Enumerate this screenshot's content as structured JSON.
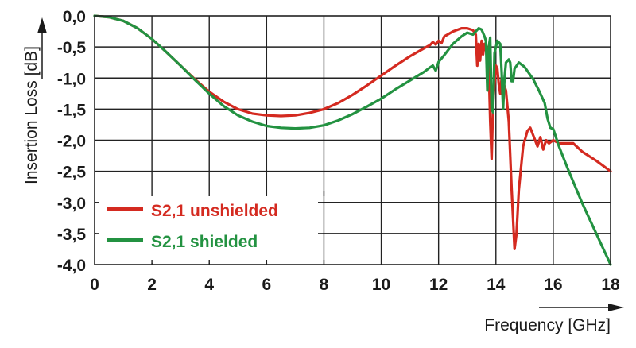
{
  "chart_data": {
    "type": "line",
    "title": "",
    "xlabel": "Frequency [GHz]",
    "ylabel": "Insertion Loss [dB]",
    "xlim": [
      0,
      18
    ],
    "ylim": [
      -4.0,
      0.0
    ],
    "grid": true,
    "legend_position": "lower-left (inside plot)",
    "x_ticks": [
      "0",
      "2",
      "4",
      "6",
      "8",
      "10",
      "12",
      "14",
      "16",
      "18"
    ],
    "y_ticks": [
      "0,0",
      "-0,5",
      "-1,0",
      "-1,5",
      "-2,0",
      "-2,5",
      "-3,0",
      "-3,5",
      "-4,0"
    ],
    "series": [
      {
        "name": "S2,1 unshielded",
        "color": "#d42a20",
        "points": [
          [
            0,
            0.0
          ],
          [
            0.5,
            -0.02
          ],
          [
            1,
            -0.08
          ],
          [
            1.5,
            -0.2
          ],
          [
            2,
            -0.37
          ],
          [
            2.5,
            -0.58
          ],
          [
            3,
            -0.8
          ],
          [
            3.5,
            -1.02
          ],
          [
            4,
            -1.22
          ],
          [
            4.5,
            -1.38
          ],
          [
            5,
            -1.5
          ],
          [
            5.5,
            -1.57
          ],
          [
            6,
            -1.6
          ],
          [
            6.5,
            -1.61
          ],
          [
            7,
            -1.6
          ],
          [
            7.5,
            -1.56
          ],
          [
            8,
            -1.5
          ],
          [
            8.5,
            -1.4
          ],
          [
            9,
            -1.27
          ],
          [
            9.5,
            -1.12
          ],
          [
            10,
            -0.96
          ],
          [
            10.5,
            -0.8
          ],
          [
            11,
            -0.65
          ],
          [
            11.5,
            -0.52
          ],
          [
            11.7,
            -0.47
          ],
          [
            11.8,
            -0.42
          ],
          [
            11.9,
            -0.46
          ],
          [
            12.0,
            -0.4
          ],
          [
            12.1,
            -0.44
          ],
          [
            12.2,
            -0.33
          ],
          [
            12.5,
            -0.25
          ],
          [
            12.8,
            -0.2
          ],
          [
            13.0,
            -0.2
          ],
          [
            13.2,
            -0.23
          ],
          [
            13.3,
            -0.3
          ],
          [
            13.35,
            -0.8
          ],
          [
            13.4,
            -0.45
          ],
          [
            13.45,
            -0.72
          ],
          [
            13.5,
            -0.4
          ],
          [
            13.55,
            -0.62
          ],
          [
            13.6,
            -0.45
          ],
          [
            13.65,
            -0.55
          ],
          [
            13.7,
            -0.5
          ],
          [
            13.75,
            -0.8
          ],
          [
            13.8,
            -1.7
          ],
          [
            13.85,
            -2.3
          ],
          [
            13.9,
            -1.4
          ],
          [
            14.0,
            -0.8
          ],
          [
            14.05,
            -0.85
          ],
          [
            14.1,
            -1.1
          ],
          [
            14.15,
            -1.25
          ],
          [
            14.2,
            -1.0
          ],
          [
            14.35,
            -1.2
          ],
          [
            14.45,
            -1.7
          ],
          [
            14.55,
            -2.8
          ],
          [
            14.65,
            -3.75
          ],
          [
            14.72,
            -3.5
          ],
          [
            14.8,
            -2.8
          ],
          [
            14.95,
            -2.1
          ],
          [
            15.1,
            -1.85
          ],
          [
            15.2,
            -1.8
          ],
          [
            15.35,
            -1.98
          ],
          [
            15.45,
            -2.1
          ],
          [
            15.55,
            -1.95
          ],
          [
            15.65,
            -2.15
          ],
          [
            15.75,
            -2.0
          ],
          [
            15.85,
            -2.05
          ],
          [
            16.0,
            -2.0
          ],
          [
            16.2,
            -2.05
          ],
          [
            16.5,
            -2.05
          ],
          [
            16.7,
            -2.05
          ],
          [
            17.0,
            -2.18
          ],
          [
            17.5,
            -2.33
          ],
          [
            18.0,
            -2.5
          ]
        ]
      },
      {
        "name": "S2,1 shielded",
        "color": "#239241",
        "points": [
          [
            0,
            0.0
          ],
          [
            0.5,
            -0.02
          ],
          [
            1,
            -0.08
          ],
          [
            1.5,
            -0.2
          ],
          [
            2,
            -0.37
          ],
          [
            2.5,
            -0.58
          ],
          [
            3,
            -0.8
          ],
          [
            3.5,
            -1.03
          ],
          [
            4,
            -1.25
          ],
          [
            4.5,
            -1.45
          ],
          [
            5,
            -1.6
          ],
          [
            5.5,
            -1.7
          ],
          [
            6,
            -1.77
          ],
          [
            6.5,
            -1.8
          ],
          [
            7,
            -1.81
          ],
          [
            7.5,
            -1.8
          ],
          [
            8,
            -1.76
          ],
          [
            8.5,
            -1.68
          ],
          [
            9,
            -1.58
          ],
          [
            9.5,
            -1.46
          ],
          [
            10,
            -1.33
          ],
          [
            10.5,
            -1.18
          ],
          [
            11,
            -1.04
          ],
          [
            11.5,
            -0.9
          ],
          [
            11.7,
            -0.83
          ],
          [
            11.8,
            -0.8
          ],
          [
            11.9,
            -0.88
          ],
          [
            12.0,
            -0.74
          ],
          [
            12.2,
            -0.63
          ],
          [
            12.5,
            -0.45
          ],
          [
            12.8,
            -0.33
          ],
          [
            13.0,
            -0.27
          ],
          [
            13.2,
            -0.3
          ],
          [
            13.4,
            -0.2
          ],
          [
            13.5,
            -0.22
          ],
          [
            13.6,
            -0.33
          ],
          [
            13.65,
            -0.4
          ],
          [
            13.7,
            -1.2
          ],
          [
            13.75,
            -0.5
          ],
          [
            13.8,
            -0.35
          ],
          [
            13.85,
            -1.5
          ],
          [
            13.9,
            -1.55
          ],
          [
            13.95,
            -0.6
          ],
          [
            14.05,
            -0.4
          ],
          [
            14.15,
            -0.45
          ],
          [
            14.2,
            -0.9
          ],
          [
            14.25,
            -1.5
          ],
          [
            14.3,
            -1.0
          ],
          [
            14.35,
            -0.75
          ],
          [
            14.45,
            -0.7
          ],
          [
            14.5,
            -0.75
          ],
          [
            14.55,
            -1.05
          ],
          [
            14.6,
            -1.05
          ],
          [
            14.65,
            -0.85
          ],
          [
            14.8,
            -0.75
          ],
          [
            15.0,
            -0.82
          ],
          [
            15.3,
            -1.02
          ],
          [
            15.5,
            -1.2
          ],
          [
            15.7,
            -1.4
          ],
          [
            15.8,
            -1.65
          ],
          [
            15.9,
            -1.8
          ],
          [
            16.0,
            -1.82
          ],
          [
            16.2,
            -2.1
          ],
          [
            16.5,
            -2.45
          ],
          [
            17.0,
            -3.0
          ],
          [
            17.5,
            -3.5
          ],
          [
            18.0,
            -4.0
          ]
        ]
      }
    ]
  },
  "axes": {
    "ylabel": "Insertion Loss [dB]",
    "xlabel": "Frequency [GHz]"
  },
  "legend": {
    "items": [
      {
        "label": "S2,1 unshielded",
        "color": "#d42a20"
      },
      {
        "label": "S2,1 shielded",
        "color": "#239241"
      }
    ]
  }
}
